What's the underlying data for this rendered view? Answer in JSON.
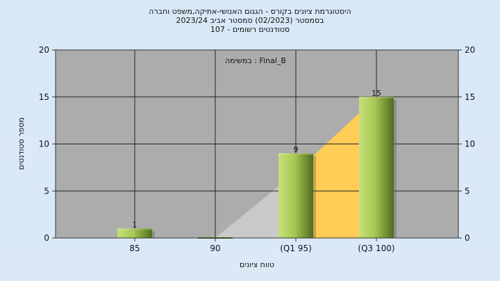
{
  "header": {
    "line1": "היסטוגרמת ציונים בקורס - הגגום האנושי-אתיקה,משפט וחברה",
    "line2": "בסמסטר  (02/2023)  סמסטר אביב 2023/24",
    "line3": "סטודנטים רשומים - 107"
  },
  "annotation": "במשימה : Final_B",
  "colors": {
    "plot_bg": "#acacac",
    "bar_light": "#c6e07a",
    "bar_dark": "#4f6b1e",
    "cumulative_fill": "#ffcc55",
    "cumulative_shade": "#c9c9c9"
  },
  "chart_data": {
    "type": "bar",
    "categories": [
      "85",
      "90",
      "(Q1 95)",
      "(Q3 100)"
    ],
    "values": [
      1,
      0,
      9,
      15
    ],
    "value_labels": [
      "1",
      "",
      "9",
      "15"
    ],
    "xlabel": "טווח ציונים",
    "ylabel": "מספר סטודנטים",
    "ylim": [
      0,
      20
    ],
    "yticks": [
      "0",
      "5",
      "10",
      "15",
      "20"
    ],
    "y2ticks": [
      "0",
      "5",
      "10",
      "15",
      "20"
    ],
    "grid": true,
    "background_area": {
      "type": "area",
      "x": [
        "90",
        "(Q1 95)",
        "(Q3 100)"
      ],
      "values": [
        0,
        7,
        15
      ]
    }
  }
}
